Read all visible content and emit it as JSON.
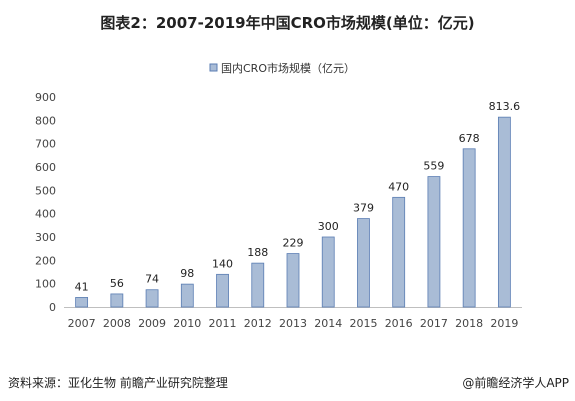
{
  "page": {
    "title": "图表2：2007-2019年中国CRO市场规模(单位：亿元)",
    "source": "资料来源：亚化生物 前瞻产业研究院整理",
    "brand": "@前瞻经济学人APP"
  },
  "colors": {
    "bar_fill": "#a9bcd6",
    "bar_stroke": "#5a7db3",
    "axis": "#bfbfbf"
  },
  "chart_data": {
    "type": "bar",
    "title": "图表2：2007-2019年中国CRO市场规模(单位：亿元)",
    "categories": [
      "2007",
      "2008",
      "2009",
      "2010",
      "2011",
      "2012",
      "2013",
      "2014",
      "2015",
      "2016",
      "2017",
      "2018",
      "2019"
    ],
    "series": [
      {
        "name": "国内CRO市场规模（亿元）",
        "values": [
          41,
          56,
          74,
          98,
          140,
          188,
          229,
          300,
          379,
          470,
          559,
          678,
          813.6
        ]
      }
    ],
    "data_labels": [
      "41",
      "56",
      "74",
      "98",
      "140",
      "188",
      "229",
      "300",
      "379",
      "470",
      "559",
      "678",
      "813.6"
    ],
    "yticks": [
      0,
      100,
      200,
      300,
      400,
      500,
      600,
      700,
      800,
      900
    ],
    "ylim": [
      0,
      900
    ],
    "xlabel": "",
    "ylabel": "",
    "grid": false,
    "legend": "top-center"
  }
}
